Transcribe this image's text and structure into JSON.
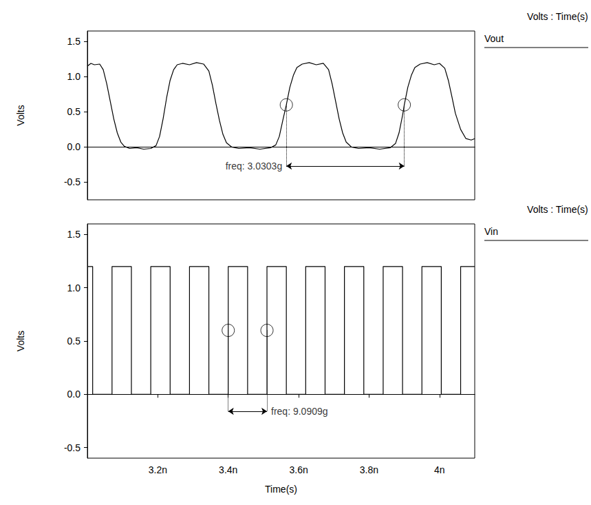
{
  "chart_data": [
    {
      "type": "line",
      "title": "Volts : Time(s)",
      "ylabel": "Volts",
      "xlim": [
        3.0,
        4.1
      ],
      "ylim": [
        -0.75,
        1.65
      ],
      "yticks": [
        -0.5,
        {
          "value": 0,
          "label": "0.0"
        },
        0.5,
        {
          "value": 1,
          "label": "1.0"
        },
        1.5
      ],
      "grid": false,
      "tick_labels": "y",
      "series": [
        {
          "name": "Vout",
          "color": "#000000",
          "x": [
            3.0,
            3.01,
            3.02,
            3.035,
            3.045,
            3.055,
            3.065,
            3.075,
            3.085,
            3.095,
            3.105,
            3.12,
            3.14,
            3.16,
            3.18,
            3.195,
            3.205,
            3.215,
            3.225,
            3.235,
            3.245,
            3.255,
            3.27,
            3.29,
            3.31,
            3.33,
            3.345,
            3.355,
            3.365,
            3.375,
            3.385,
            3.395,
            3.41,
            3.43,
            3.46,
            3.49,
            3.52,
            3.535,
            3.545,
            3.555,
            3.565,
            3.575,
            3.585,
            3.595,
            3.61,
            3.63,
            3.65,
            3.67,
            3.685,
            3.695,
            3.705,
            3.715,
            3.725,
            3.735,
            3.75,
            3.77,
            3.8,
            3.83,
            3.86,
            3.875,
            3.885,
            3.895,
            3.9,
            3.91,
            3.92,
            3.93,
            3.945,
            3.965,
            3.985,
            4.0,
            4.015,
            4.025,
            4.035,
            4.045,
            4.06,
            4.075,
            4.09,
            4.1
          ],
          "values": [
            1.15,
            1.19,
            1.17,
            1.18,
            1.1,
            0.9,
            0.65,
            0.4,
            0.2,
            0.07,
            0.01,
            -0.02,
            -0.01,
            -0.03,
            -0.02,
            0.02,
            0.15,
            0.4,
            0.7,
            0.95,
            1.1,
            1.17,
            1.19,
            1.17,
            1.2,
            1.18,
            1.08,
            0.88,
            0.62,
            0.38,
            0.18,
            0.06,
            0.0,
            -0.02,
            -0.01,
            -0.03,
            -0.01,
            0.03,
            0.15,
            0.38,
            0.6,
            0.85,
            1.02,
            1.13,
            1.18,
            1.2,
            1.17,
            1.19,
            1.1,
            0.9,
            0.65,
            0.4,
            0.2,
            0.07,
            0.0,
            -0.02,
            -0.01,
            -0.03,
            -0.01,
            0.05,
            0.2,
            0.45,
            0.6,
            0.85,
            1.02,
            1.13,
            1.18,
            1.2,
            1.17,
            1.19,
            1.12,
            0.95,
            0.72,
            0.48,
            0.25,
            0.12,
            0.1,
            0.12
          ]
        }
      ],
      "measurement": {
        "label": "freq: 3.0303g",
        "x": [
          3.565,
          3.9
        ],
        "y": 0.6
      }
    },
    {
      "type": "line",
      "title": "Volts : Time(s)",
      "ylabel": "Volts",
      "xlabel": "Time(s)",
      "xlim": [
        3.0,
        4.1
      ],
      "ylim": [
        -0.6,
        1.6
      ],
      "xticks": [
        {
          "value": 3.2,
          "label": "3.2n"
        },
        {
          "value": 3.4,
          "label": "3.4n"
        },
        {
          "value": 3.6,
          "label": "3.6n"
        },
        {
          "value": 3.8,
          "label": "3.8n"
        },
        {
          "value": 4,
          "label": "4n"
        }
      ],
      "yticks": [
        -0.5,
        {
          "value": 0,
          "label": "0.0"
        },
        0.5,
        {
          "value": 1,
          "label": "1.0"
        },
        1.5
      ],
      "grid": false,
      "tick_labels": true,
      "series": [
        {
          "name": "Vin",
          "color": "#000000",
          "x": [
            3.0,
            3.015,
            3.015,
            3.07,
            3.07,
            3.125,
            3.125,
            3.18,
            3.18,
            3.235,
            3.235,
            3.29,
            3.29,
            3.345,
            3.345,
            3.4,
            3.4,
            3.455,
            3.455,
            3.51,
            3.51,
            3.565,
            3.565,
            3.62,
            3.62,
            3.675,
            3.675,
            3.73,
            3.73,
            3.785,
            3.785,
            3.84,
            3.84,
            3.895,
            3.895,
            3.95,
            3.95,
            4.005,
            4.005,
            4.06,
            4.06,
            4.1
          ],
          "values": [
            1.2,
            1.2,
            0,
            0,
            1.2,
            1.2,
            0,
            0,
            1.2,
            1.2,
            0,
            0,
            1.2,
            1.2,
            0,
            0,
            1.2,
            1.2,
            0,
            0,
            1.2,
            1.2,
            0,
            0,
            1.2,
            1.2,
            0,
            0,
            1.2,
            1.2,
            0,
            0,
            1.2,
            1.2,
            0,
            0,
            1.2,
            1.2,
            0,
            0,
            1.2,
            1.2
          ]
        }
      ],
      "measurement": {
        "label": "freq: 9.0909g",
        "x": [
          3.4,
          3.51
        ],
        "y": 0.6
      }
    }
  ]
}
